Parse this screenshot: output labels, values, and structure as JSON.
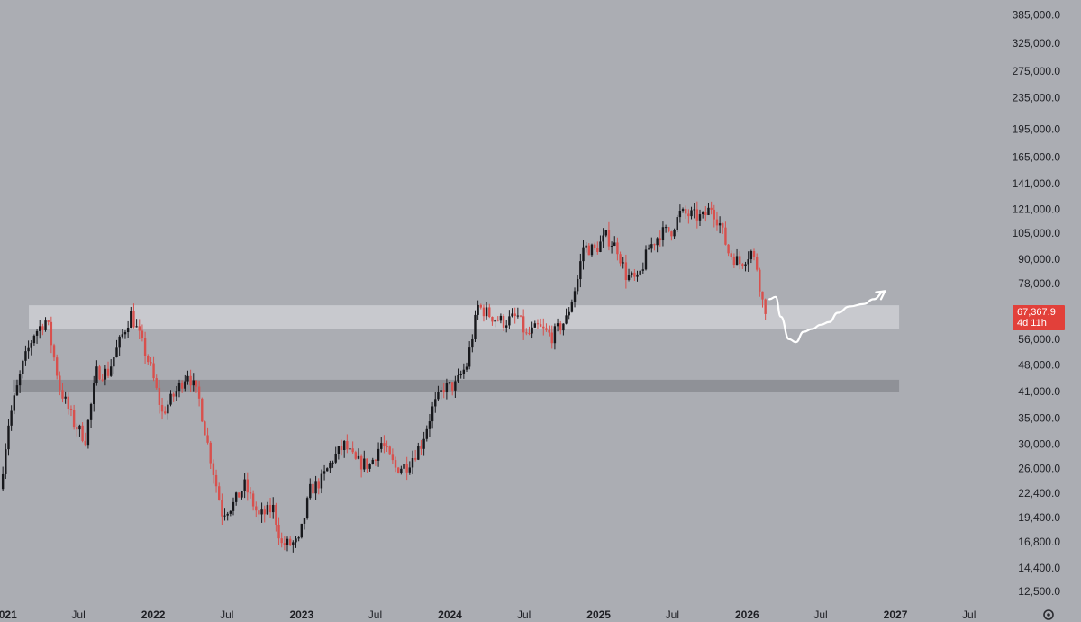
{
  "chart_data": {
    "type": "candlestick",
    "y_scale": "log",
    "ylim": [
      11800,
      420000
    ],
    "xlim": [
      "2020-12-20",
      "2027-09-15"
    ],
    "y_ticks": [
      "385,000.0",
      "325,000.0",
      "275,000.0",
      "235,000.0",
      "195,000.0",
      "165,000.0",
      "141,000.0",
      "121,000.0",
      "105,000.0",
      "90,000.0",
      "78,000.0",
      "56,000.0",
      "48,000.0",
      "41,000.0",
      "35,000.0",
      "30,000.0",
      "26,000.0",
      "22,400.0",
      "19,400.0",
      "16,800.0",
      "14,400.0",
      "12,500.0"
    ],
    "x_ticks": [
      {
        "label": "2021",
        "date": "2021-01-01",
        "year": true
      },
      {
        "label": "Jul",
        "date": "2021-07-01",
        "year": false
      },
      {
        "label": "2022",
        "date": "2022-01-01",
        "year": true
      },
      {
        "label": "Jul",
        "date": "2022-07-01",
        "year": false
      },
      {
        "label": "2023",
        "date": "2023-01-01",
        "year": true
      },
      {
        "label": "Jul",
        "date": "2023-07-01",
        "year": false
      },
      {
        "label": "2024",
        "date": "2024-01-01",
        "year": true
      },
      {
        "label": "Jul",
        "date": "2024-07-01",
        "year": false
      },
      {
        "label": "2025",
        "date": "2025-01-01",
        "year": true
      },
      {
        "label": "Jul",
        "date": "2025-07-01",
        "year": false
      },
      {
        "label": "2026",
        "date": "2026-01-01",
        "year": true
      },
      {
        "label": "Jul",
        "date": "2026-07-01",
        "year": false
      },
      {
        "label": "2027",
        "date": "2027-01-01",
        "year": true
      },
      {
        "label": "Jul",
        "date": "2027-07-01",
        "year": false
      }
    ],
    "price_path": [
      [
        "2020-12-20",
        23000
      ],
      [
        "2021-01-10",
        34000
      ],
      [
        "2021-02-14",
        48000
      ],
      [
        "2021-03-14",
        58000
      ],
      [
        "2021-04-14",
        63000
      ],
      [
        "2021-05-16",
        42000
      ],
      [
        "2021-06-20",
        34000
      ],
      [
        "2021-07-18",
        31000
      ],
      [
        "2021-08-15",
        46000
      ],
      [
        "2021-09-12",
        46000
      ],
      [
        "2021-10-10",
        55000
      ],
      [
        "2021-11-07",
        65000
      ],
      [
        "2021-11-28",
        57000
      ],
      [
        "2021-12-26",
        47000
      ],
      [
        "2022-01-23",
        36000
      ],
      [
        "2022-02-20",
        40000
      ],
      [
        "2022-03-27",
        46000
      ],
      [
        "2022-04-24",
        39000
      ],
      [
        "2022-05-15",
        30000
      ],
      [
        "2022-06-19",
        20000
      ],
      [
        "2022-07-17",
        21000
      ],
      [
        "2022-08-14",
        23500
      ],
      [
        "2022-09-18",
        19500
      ],
      [
        "2022-10-23",
        20500
      ],
      [
        "2022-11-13",
        16500
      ],
      [
        "2022-12-25",
        16700
      ],
      [
        "2023-01-22",
        22800
      ],
      [
        "2023-02-19",
        24200
      ],
      [
        "2023-03-19",
        27500
      ],
      [
        "2023-04-16",
        29800
      ],
      [
        "2023-05-14",
        27000
      ],
      [
        "2023-06-18",
        26500
      ],
      [
        "2023-07-16",
        30200
      ],
      [
        "2023-08-20",
        26000
      ],
      [
        "2023-09-17",
        26500
      ],
      [
        "2023-10-22",
        30000
      ],
      [
        "2023-11-19",
        37000
      ],
      [
        "2023-12-17",
        42000
      ],
      [
        "2024-01-14",
        42500
      ],
      [
        "2024-02-11",
        48000
      ],
      [
        "2024-03-10",
        68000
      ],
      [
        "2024-04-14",
        64000
      ],
      [
        "2024-05-12",
        62000
      ],
      [
        "2024-06-16",
        64000
      ],
      [
        "2024-07-07",
        57000
      ],
      [
        "2024-08-04",
        60000
      ],
      [
        "2024-09-08",
        57000
      ],
      [
        "2024-10-13",
        63000
      ],
      [
        "2024-11-10",
        80000
      ],
      [
        "2024-11-24",
        97000
      ],
      [
        "2024-12-22",
        95000
      ],
      [
        "2025-01-19",
        103000
      ],
      [
        "2025-02-16",
        96000
      ],
      [
        "2025-03-09",
        82000
      ],
      [
        "2025-04-06",
        79000
      ],
      [
        "2025-05-04",
        96000
      ],
      [
        "2025-06-01",
        105000
      ],
      [
        "2025-06-29",
        107000
      ],
      [
        "2025-07-20",
        118000
      ],
      [
        "2025-08-17",
        117000
      ],
      [
        "2025-09-14",
        115000
      ],
      [
        "2025-10-05",
        123000
      ],
      [
        "2025-10-26",
        111000
      ],
      [
        "2025-11-16",
        94000
      ],
      [
        "2025-12-14",
        88000
      ],
      [
        "2026-01-11",
        94000
      ],
      [
        "2026-01-25",
        86000
      ],
      [
        "2026-02-08",
        70000
      ],
      [
        "2026-02-15",
        67368
      ]
    ],
    "last_price": "67,367.9",
    "countdown": "4d 11h",
    "zones": [
      {
        "low": 59500,
        "high": 68500,
        "start": "2021-03-01",
        "end": "2027-01-10",
        "color": "#c8c9ce"
      },
      {
        "low": 41000,
        "high": 44000,
        "start": "2021-01-20",
        "end": "2027-01-10",
        "color": "#8f9197"
      }
    ],
    "projection": [
      [
        "2026-02-25",
        71000
      ],
      [
        "2026-03-12",
        72000
      ],
      [
        "2026-03-25",
        64000
      ],
      [
        "2026-04-14",
        56000
      ],
      [
        "2026-05-01",
        55000
      ],
      [
        "2026-05-20",
        58500
      ],
      [
        "2026-06-10",
        59500
      ],
      [
        "2026-07-01",
        61000
      ],
      [
        "2026-07-22",
        62000
      ],
      [
        "2026-08-12",
        65500
      ],
      [
        "2026-09-10",
        68000
      ],
      [
        "2026-10-15",
        69000
      ],
      [
        "2026-11-08",
        71000
      ],
      [
        "2026-12-06",
        74500
      ]
    ],
    "colors": {
      "up": "#17181c",
      "down": "#d8504d",
      "background": "#abadb3",
      "price_tag": "#e2403a",
      "projection": "#ffffff"
    }
  },
  "footer": {
    "settings_icon": "gear-icon"
  }
}
